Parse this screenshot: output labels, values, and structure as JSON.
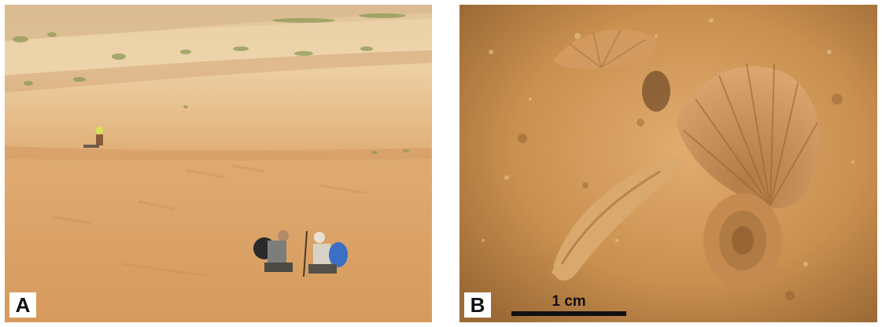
{
  "figure": {
    "panels": [
      {
        "label": "A",
        "subject": "photo-outcrop-field-team"
      },
      {
        "label": "B",
        "subject": "photo-fossil-shells",
        "scale_bar": "1 cm"
      }
    ]
  },
  "colors": {
    "sand_light": "#e9c99a",
    "sand_mid": "#d9a66d",
    "sand_dark": "#c68a50",
    "vegetation": "#8c9a56",
    "shell": "#c9925c",
    "label_bg": "#ffffff",
    "label_text": "#111111"
  }
}
